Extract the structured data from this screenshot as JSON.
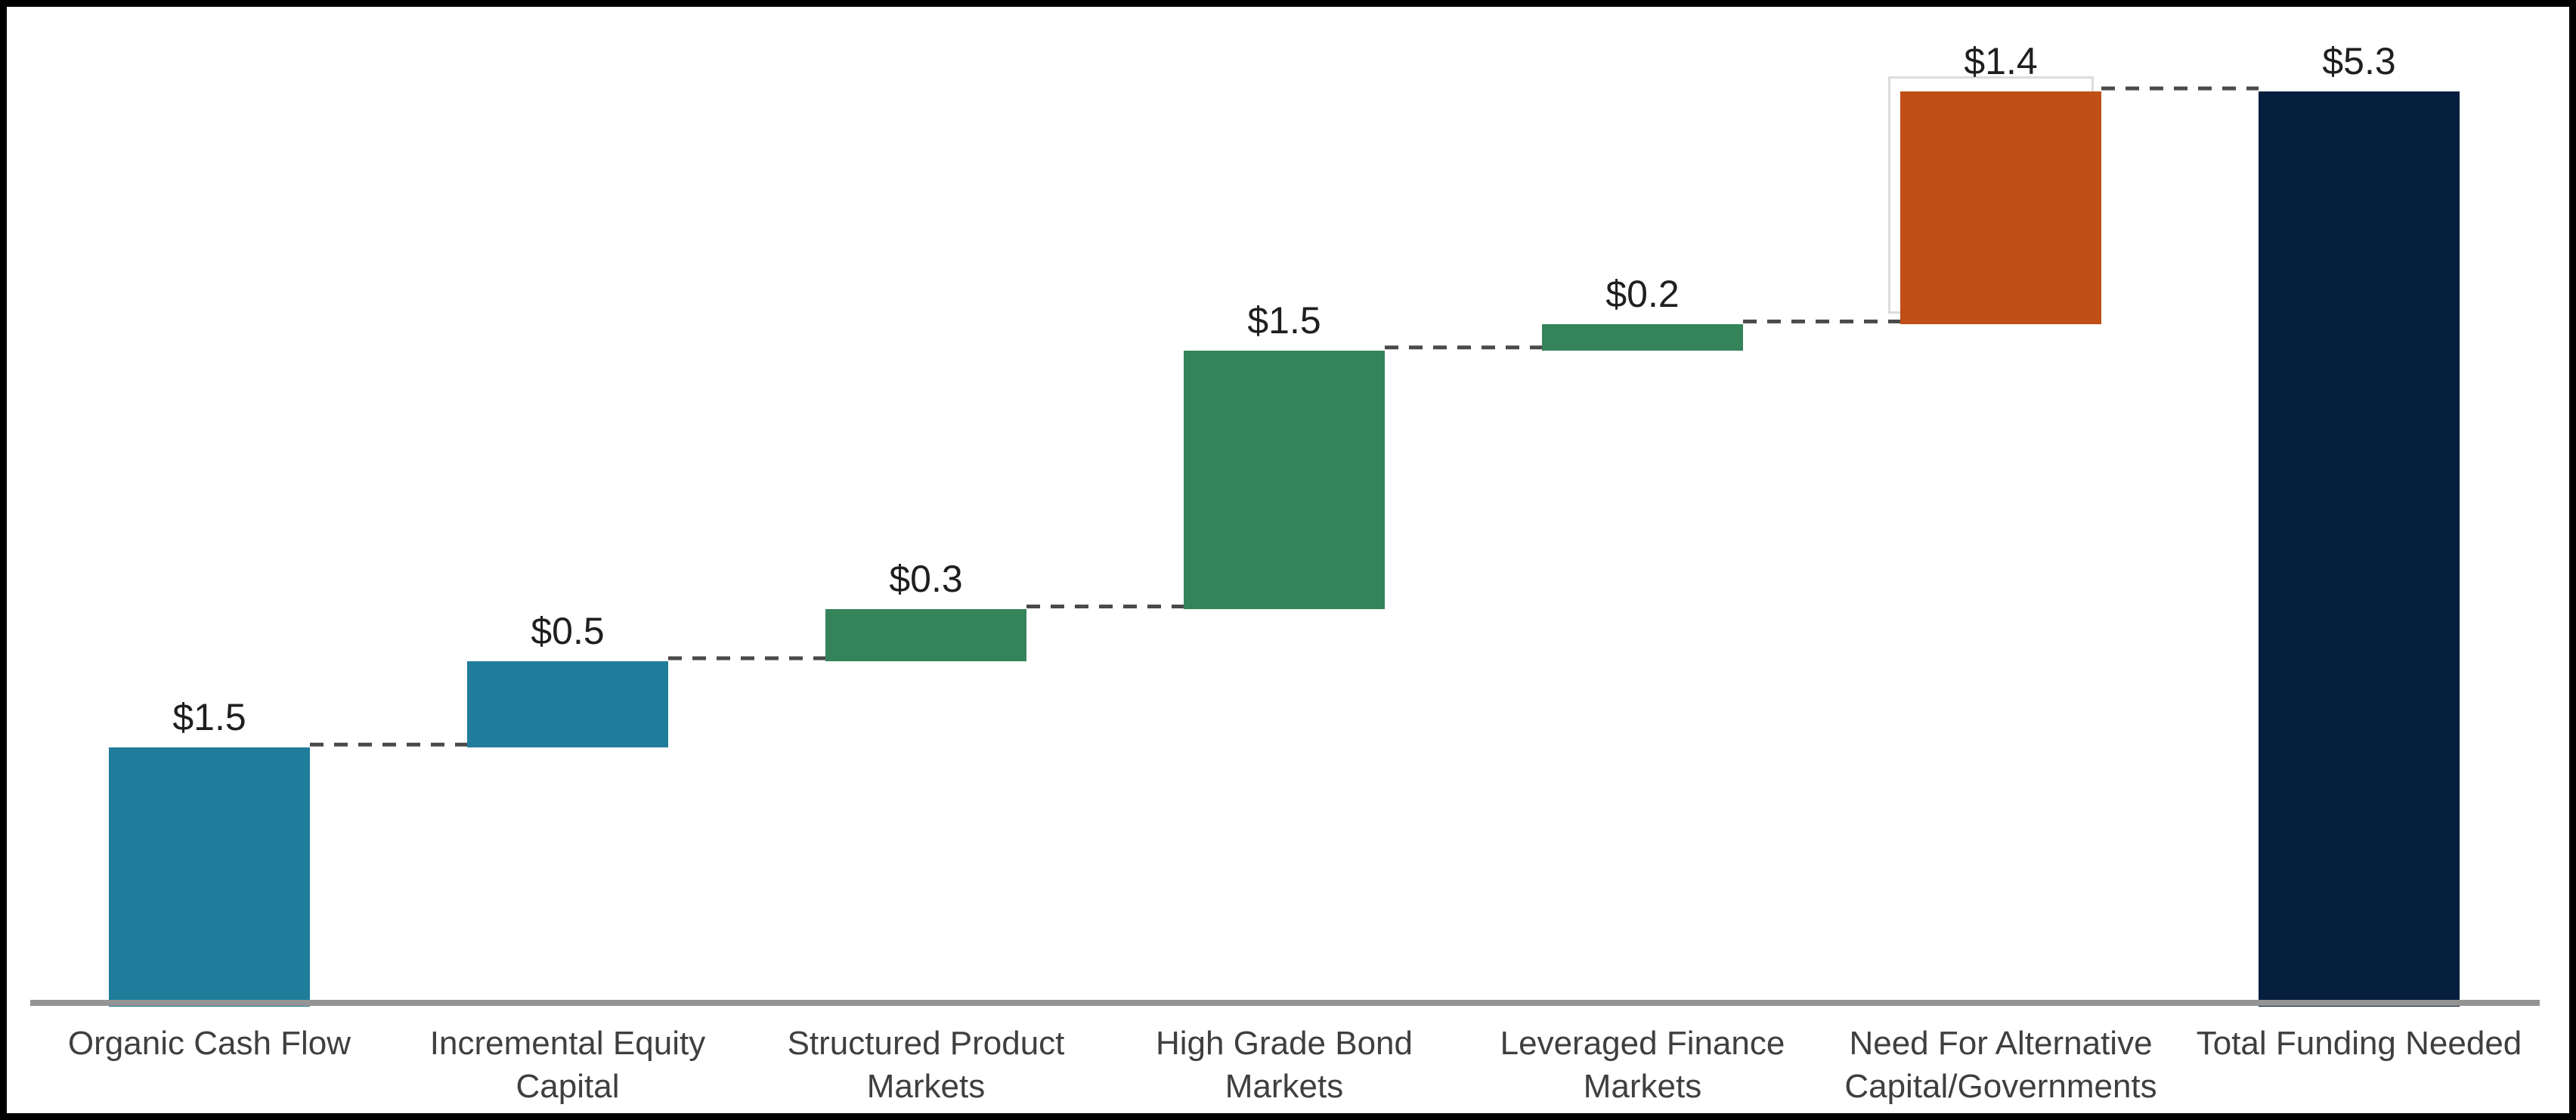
{
  "page": {
    "background_color": "#ffffff",
    "frame_color": "#000000"
  },
  "chart_data": {
    "type": "bar",
    "variant": "waterfall",
    "title": "",
    "xlabel": "",
    "ylabel": "",
    "ylim": [
      0,
      5.95
    ],
    "grid": false,
    "legend": false,
    "axis_line_color": "#949494",
    "connector": {
      "style": "dashed",
      "color": "#4a4a4a"
    },
    "colors": {
      "contribution_teal": "#1F7D9B",
      "contribution_green": "#35835A",
      "gap_orange": "#C04F16",
      "total_navy": "#071F3E"
    },
    "categories": [
      "Organic Cash Flow",
      "Incremental Equity Capital",
      "Structured Product Markets",
      "High Grade Bond Markets",
      "Leveraged Finance Markets",
      "Need For Alternative Capital/Governments",
      "Total Funding Needed"
    ],
    "bars": [
      {
        "category": "Organic Cash Flow",
        "value_label": "$1.5",
        "value": 1.5,
        "start": 0.0,
        "end": 1.5,
        "color": "#1F7D9B"
      },
      {
        "category": "Incremental Equity Capital",
        "value_label": "$0.5",
        "value": 0.5,
        "start": 1.5,
        "end": 2.0,
        "color": "#1F7D9B"
      },
      {
        "category": "Structured Product Markets",
        "value_label": "$0.3",
        "value": 0.3,
        "start": 2.0,
        "end": 2.3,
        "color": "#35835A"
      },
      {
        "category": "High Grade Bond Markets",
        "value_label": "$1.5",
        "value": 1.5,
        "start": 2.3,
        "end": 3.8,
        "color": "#35835A"
      },
      {
        "category": "Leveraged Finance Markets",
        "value_label": "$0.2",
        "value": 0.2,
        "start": 3.8,
        "end": 3.95,
        "color": "#35835A"
      },
      {
        "category": "Need For Alternative Capital/Governments",
        "value_label": "$1.4",
        "value": 1.4,
        "start": 3.95,
        "end": 5.3,
        "color": "#C04F16",
        "ghost_outline": true
      },
      {
        "category": "Total Funding Needed",
        "value_label": "$5.3",
        "value": 5.3,
        "start": 0.0,
        "end": 5.3,
        "color": "#071F3E",
        "is_total": true
      }
    ]
  }
}
